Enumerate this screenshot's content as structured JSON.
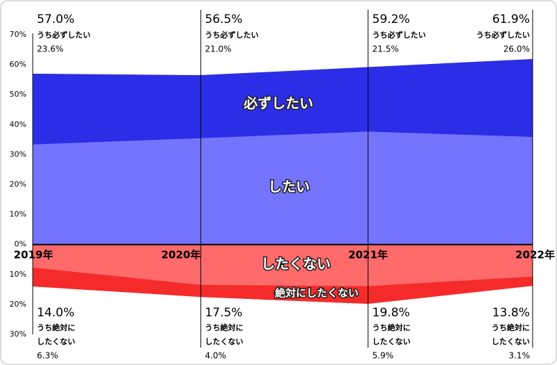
{
  "chart_data": {
    "type": "diverging-area",
    "categories": [
      "2019年",
      "2020年",
      "2021年",
      "2022年"
    ],
    "ylim": [
      -30,
      70
    ],
    "yticks": [
      {
        "value": 70,
        "label": "70%"
      },
      {
        "value": 60,
        "label": "60%"
      },
      {
        "value": 50,
        "label": "50%"
      },
      {
        "value": 40,
        "label": "40%"
      },
      {
        "value": 30,
        "label": "30%"
      },
      {
        "value": 20,
        "label": "20%"
      },
      {
        "value": 10,
        "label": "10%"
      },
      {
        "value": 0,
        "label": "0%"
      },
      {
        "value": -10,
        "label": "10%"
      },
      {
        "value": -20,
        "label": "20%"
      },
      {
        "value": -30,
        "label": "30%"
      }
    ],
    "series": [
      {
        "name": "したい",
        "color": "#7474ff",
        "side": "up",
        "part": "total",
        "values": [
          57.0,
          56.5,
          59.2,
          61.9
        ],
        "value_labels": [
          "57.0%",
          "56.5%",
          "59.2%",
          "61.9%"
        ]
      },
      {
        "name": "必ずしたい",
        "color": "#2b2ee6",
        "side": "up",
        "part": "top",
        "annotation": [
          "うち必ずしたい"
        ],
        "values": [
          23.6,
          21.0,
          21.5,
          26.0
        ],
        "value_labels": [
          "23.6%",
          "21.0%",
          "21.5%",
          "26.0%"
        ]
      },
      {
        "name": "したくない",
        "color": "#ff6a6a",
        "side": "down",
        "part": "total",
        "values": [
          14.0,
          17.5,
          19.8,
          13.8
        ],
        "value_labels": [
          "14.0%",
          "17.5%",
          "19.8%",
          "13.8%"
        ]
      },
      {
        "name": "絶対にしたくない",
        "color": "#f52b2b",
        "side": "down",
        "part": "top",
        "annotation": [
          "うち絶対に",
          "したくない"
        ],
        "values": [
          6.3,
          4.0,
          5.9,
          3.1
        ],
        "value_labels": [
          "6.3%",
          "4.0%",
          "5.9%",
          "3.1%"
        ]
      }
    ]
  }
}
